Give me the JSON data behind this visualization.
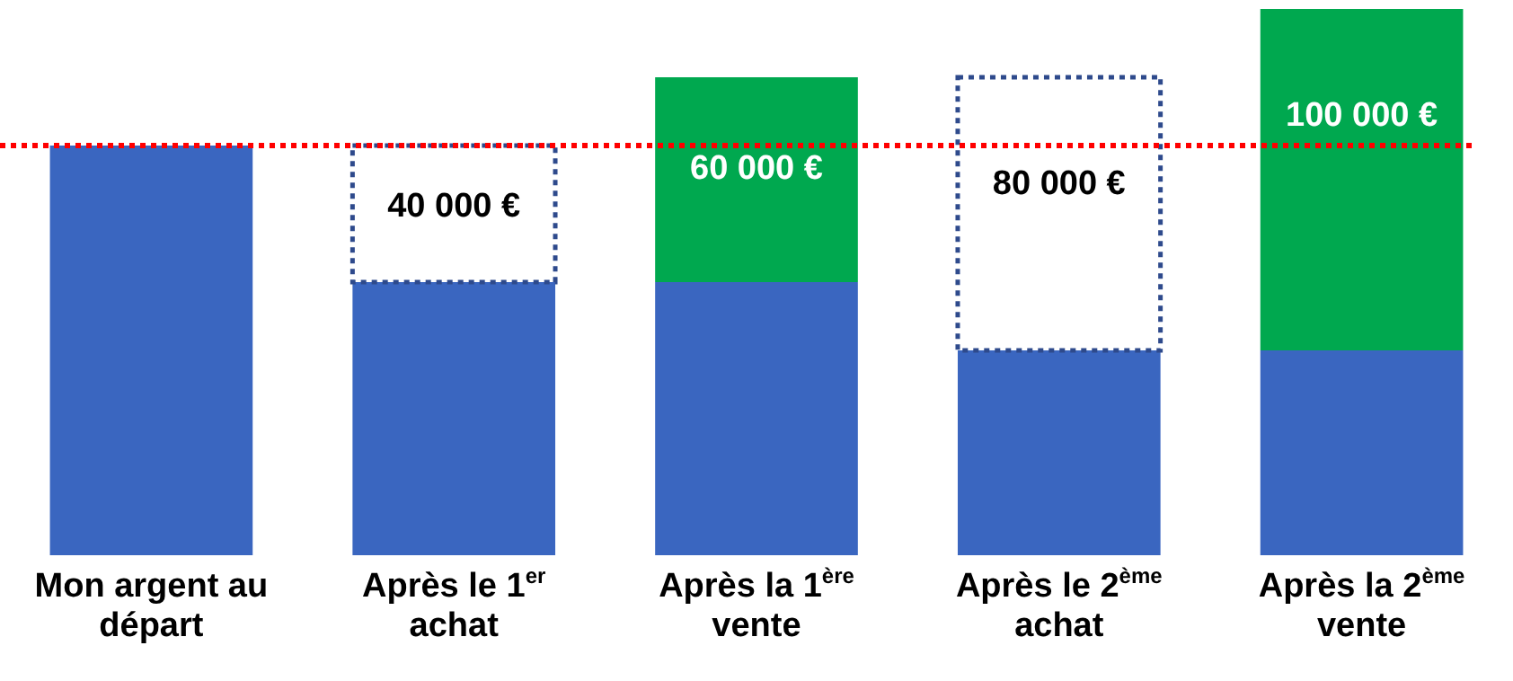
{
  "chart_data": {
    "type": "bar",
    "stacked": true,
    "categories": [
      "Mon argent au départ",
      "Après le 1$^{er}$ achat",
      "Après la 1$^{ère}$ vente",
      "Après le 2$^{ème}$ achat",
      "Après la 2$^{ème}$ vente"
    ],
    "series": [
      {
        "color": "#3a66c0",
        "values": [
          120000,
          80000,
          80000,
          60000,
          60000
        ]
      },
      {
        "color": "#2e4a8c",
        "line_style": "dotted",
        "values": [
          null,
          40000,
          null,
          80000,
          null
        ],
        "value_labels": [
          null,
          "40 000 €",
          null,
          "80 000 €",
          null
        ]
      },
      {
        "color": "#00a84f",
        "values": [
          null,
          null,
          60000,
          null,
          100000
        ],
        "value_labels": [
          null,
          null,
          "60 000 €",
          null,
          "100 000 €"
        ]
      }
    ],
    "ylim": [
      0,
      160000
    ],
    "ref_lines": [
      {
        "axis": "y",
        "value": 120000,
        "color": "#ff0000",
        "line_style": "dotted"
      }
    ],
    "legend": false
  }
}
